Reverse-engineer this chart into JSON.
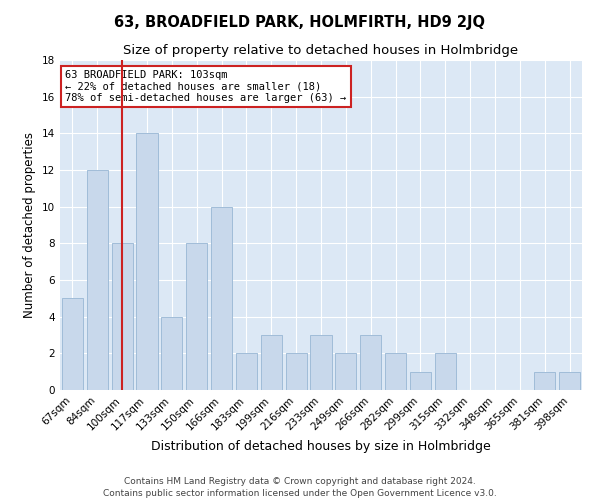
{
  "title": "63, BROADFIELD PARK, HOLMFIRTH, HD9 2JQ",
  "subtitle": "Size of property relative to detached houses in Holmbridge",
  "xlabel": "Distribution of detached houses by size in Holmbridge",
  "ylabel": "Number of detached properties",
  "categories": [
    "67sqm",
    "84sqm",
    "100sqm",
    "117sqm",
    "133sqm",
    "150sqm",
    "166sqm",
    "183sqm",
    "199sqm",
    "216sqm",
    "233sqm",
    "249sqm",
    "266sqm",
    "282sqm",
    "299sqm",
    "315sqm",
    "332sqm",
    "348sqm",
    "365sqm",
    "381sqm",
    "398sqm"
  ],
  "values": [
    5,
    12,
    8,
    14,
    4,
    8,
    10,
    2,
    3,
    2,
    3,
    2,
    3,
    2,
    1,
    2,
    0,
    0,
    0,
    1,
    1
  ],
  "bar_color": "#c8d8eb",
  "bar_edge_color": "#a0bcd8",
  "background_color": "#ffffff",
  "axes_background_color": "#dce8f5",
  "grid_color": "#ffffff",
  "vline_x_index": 2,
  "vline_color": "#cc2222",
  "annotation_lines": [
    "63 BROADFIELD PARK: 103sqm",
    "← 22% of detached houses are smaller (18)",
    "78% of semi-detached houses are larger (63) →"
  ],
  "annotation_box_color": "#ffffff",
  "annotation_box_edge_color": "#cc2222",
  "ylim": [
    0,
    18
  ],
  "yticks": [
    0,
    2,
    4,
    6,
    8,
    10,
    12,
    14,
    16,
    18
  ],
  "footer": "Contains HM Land Registry data © Crown copyright and database right 2024.\nContains public sector information licensed under the Open Government Licence v3.0.",
  "title_fontsize": 10.5,
  "subtitle_fontsize": 9.5,
  "xlabel_fontsize": 9,
  "ylabel_fontsize": 8.5,
  "tick_fontsize": 7.5,
  "annotation_fontsize": 7.5,
  "footer_fontsize": 6.5
}
